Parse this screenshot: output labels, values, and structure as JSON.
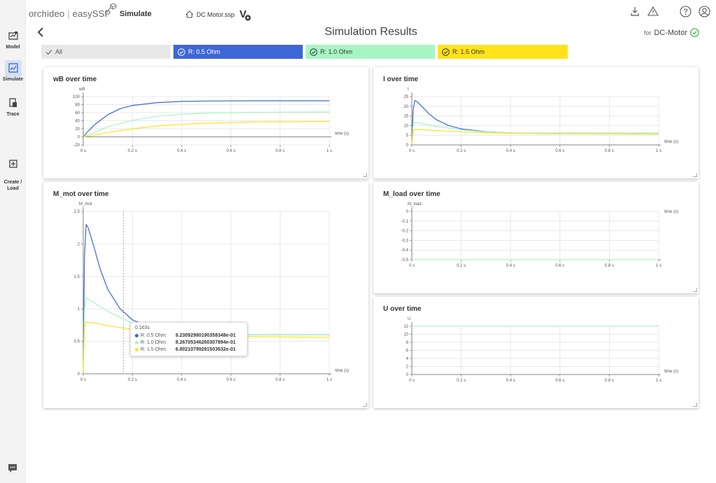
{
  "app": {
    "brand_left": "orchideo",
    "brand_sep": " | ",
    "brand_right": "easySSP",
    "section": "Simulate",
    "document": "DC Motor.ssp",
    "version_badge": "V"
  },
  "sidebar": {
    "items": [
      {
        "label": "Model",
        "icon": "model-icon"
      },
      {
        "label": "Simulate",
        "icon": "simulate-icon",
        "active": true
      },
      {
        "label": "Trace",
        "icon": "trace-icon"
      },
      {
        "label": "Create /\nLoad",
        "icon": "create-load-icon"
      }
    ]
  },
  "header": {
    "title": "Simulation Results",
    "for_prefix": "for",
    "for_target": "DC-Motor"
  },
  "filters": [
    {
      "label": "All",
      "color": "#e8e8e8",
      "text_color": "#555"
    },
    {
      "label": "R: 0.5 Ohm",
      "color": "#3e66d6",
      "text_color": "#ffffff"
    },
    {
      "label": "R: 1.0 Ohm",
      "color": "#a8f5c4",
      "text_color": "#333333"
    },
    {
      "label": "R: 1.5 Ohm",
      "color": "#ffe31a",
      "text_color": "#333333"
    }
  ],
  "colors": {
    "r05": "#3e66d6",
    "r10": "#a8f5c4",
    "r15": "#ffe31a",
    "ok": "#3cb54a"
  },
  "chart_data": [
    {
      "type": "line",
      "title": "wB over time",
      "ylabel": "wB",
      "xlabel": "time (s)",
      "xlim": [
        0,
        1
      ],
      "ylim": [
        -20,
        100
      ],
      "x_ticks": [
        "0 s",
        "0.2 s",
        "0.4 s",
        "0.6 s",
        "0.8 s",
        "1 s"
      ],
      "y_ticks": [
        "-20",
        "0",
        "20",
        "40",
        "60",
        "80",
        "100"
      ],
      "series": [
        {
          "name": "R: 0.5 Ohm",
          "x": [
            0,
            0.02,
            0.05,
            0.1,
            0.15,
            0.2,
            0.3,
            0.4,
            0.5,
            0.7,
            1.0
          ],
          "y": [
            0,
            14,
            32,
            55,
            70,
            78,
            85,
            88,
            89,
            89.5,
            89.6
          ]
        },
        {
          "name": "R: 1.0 Ohm",
          "x": [
            0,
            0.05,
            0.1,
            0.2,
            0.3,
            0.4,
            0.5,
            0.7,
            1.0
          ],
          "y": [
            0,
            12,
            25,
            41,
            51,
            56,
            59,
            61,
            62
          ]
        },
        {
          "name": "R: 1.5 Ohm",
          "x": [
            0,
            0.05,
            0.1,
            0.2,
            0.3,
            0.4,
            0.5,
            0.7,
            1.0
          ],
          "y": [
            0,
            5,
            11,
            20,
            27,
            31,
            34,
            37,
            38
          ]
        }
      ]
    },
    {
      "type": "line",
      "title": "I over time",
      "ylabel": "I",
      "xlabel": "time (s)",
      "xlim": [
        0,
        1
      ],
      "ylim": [
        0,
        25
      ],
      "x_ticks": [
        "0 s",
        "0.2 s",
        "0.4 s",
        "0.6 s",
        "0.8 s",
        "1 s"
      ],
      "y_ticks": [
        "0",
        "5",
        "10",
        "15",
        "20",
        "25"
      ],
      "series": [
        {
          "name": "R: 0.5 Ohm",
          "x": [
            0,
            0.005,
            0.012,
            0.02,
            0.04,
            0.07,
            0.1,
            0.15,
            0.2,
            0.3,
            0.4,
            0.5,
            1.0
          ],
          "y": [
            0,
            18,
            23,
            22.5,
            20,
            16,
            13,
            10,
            8.3,
            6.8,
            6.2,
            6,
            6
          ]
        },
        {
          "name": "R: 1.0 Ohm",
          "x": [
            0,
            0.005,
            0.012,
            0.05,
            0.1,
            0.2,
            0.3,
            0.4,
            0.5,
            1.0
          ],
          "y": [
            0,
            10,
            11.7,
            10.8,
            9.6,
            7.8,
            6.7,
            6.2,
            6,
            6
          ]
        },
        {
          "name": "R: 1.5 Ohm",
          "x": [
            0,
            0.005,
            0.012,
            0.05,
            0.1,
            0.2,
            0.3,
            0.4,
            0.5,
            1.0
          ],
          "y": [
            0,
            7,
            8,
            7.8,
            7.4,
            6.8,
            6.3,
            6,
            5.8,
            5.6
          ]
        }
      ]
    },
    {
      "type": "line",
      "title": "M_mot over time",
      "ylabel": "M_mot",
      "xlabel": "time (s)",
      "xlim": [
        0,
        1
      ],
      "ylim": [
        0,
        2.5
      ],
      "x_ticks": [
        "0 s",
        "0.2 s",
        "0.4 s",
        "0.6 s",
        "0.8 s",
        "1 s"
      ],
      "y_ticks": [
        "0",
        "0.5",
        "1",
        "1.5",
        "2",
        "2.5"
      ],
      "series": [
        {
          "name": "R: 0.5 Ohm",
          "x": [
            0,
            0.005,
            0.012,
            0.02,
            0.04,
            0.07,
            0.1,
            0.15,
            0.2,
            0.3,
            0.4,
            0.5,
            1.0
          ],
          "y": [
            0,
            1.8,
            2.3,
            2.25,
            2.0,
            1.6,
            1.3,
            1.0,
            0.83,
            0.68,
            0.62,
            0.6,
            0.6
          ]
        },
        {
          "name": "R: 1.0 Ohm",
          "x": [
            0,
            0.005,
            0.012,
            0.05,
            0.1,
            0.2,
            0.3,
            0.4,
            0.5,
            1.0
          ],
          "y": [
            0,
            1.0,
            1.17,
            1.08,
            0.96,
            0.78,
            0.67,
            0.62,
            0.6,
            0.6
          ]
        },
        {
          "name": "R: 1.5 Ohm",
          "x": [
            0,
            0.005,
            0.012,
            0.05,
            0.1,
            0.2,
            0.3,
            0.4,
            0.5,
            1.0
          ],
          "y": [
            0,
            0.7,
            0.8,
            0.78,
            0.74,
            0.68,
            0.63,
            0.6,
            0.58,
            0.56
          ]
        }
      ],
      "crosshair_x": 0.163
    },
    {
      "type": "line",
      "title": "M_load over time",
      "ylabel": "M_load",
      "xlabel": "time (s)",
      "xlim": [
        0,
        1
      ],
      "ylim": [
        -0.5,
        0
      ],
      "x_ticks": [
        "0 s",
        "0.2 s",
        "0.4 s",
        "0.6 s",
        "0.8 s",
        "1 s"
      ],
      "y_ticks": [
        "-0.5",
        "-0.4",
        "-0.3",
        "-0.2",
        "-0.1",
        "0"
      ],
      "series": [
        {
          "name": "R: 1.0 Ohm",
          "x": [
            0,
            1
          ],
          "y": [
            -0.5,
            -0.5
          ]
        }
      ]
    },
    {
      "type": "line",
      "title": "U over time",
      "ylabel": "U",
      "xlabel": "time (s)",
      "xlim": [
        0,
        1
      ],
      "ylim": [
        0,
        12
      ],
      "x_ticks": [
        "0 s",
        "0.2 s",
        "0.4 s",
        "0.6 s",
        "0.8 s",
        "1 s"
      ],
      "y_ticks": [
        "0",
        "2",
        "4",
        "6",
        "8",
        "10",
        "12"
      ],
      "series": [
        {
          "name": "R: 1.0 Ohm",
          "x": [
            0,
            1
          ],
          "y": [
            12,
            12
          ]
        }
      ]
    }
  ],
  "tooltip": {
    "time": "0.163s",
    "rows": [
      {
        "name": "R: 0.5 Ohm:",
        "value": "9.23092980190358348e-01",
        "color": "#3e66d6"
      },
      {
        "name": "R: 1.0 Ohm:",
        "value": "8.26705346260307894e-01",
        "color": "#a8f5c4"
      },
      {
        "name": "R: 1.5 Ohm:",
        "value": "6.80210799291503632e-01",
        "color": "#ffe31a"
      }
    ]
  }
}
